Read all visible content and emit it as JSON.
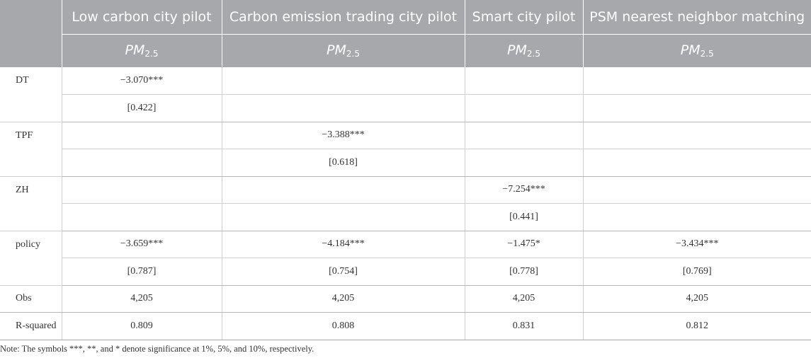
{
  "table": {
    "columns": [
      {
        "header": "Low carbon city pilot",
        "dep_var": "PM",
        "dep_sub": "2.5"
      },
      {
        "header": "Carbon emission trading city pilot",
        "dep_var": "PM",
        "dep_sub": "2.5"
      },
      {
        "header": "Smart city pilot",
        "dep_var": "PM",
        "dep_sub": "2.5"
      },
      {
        "header": "PSM nearest neighbor matching",
        "dep_var": "PM",
        "dep_sub": "2.5"
      }
    ],
    "rows": [
      {
        "var": "DT",
        "coef": [
          "−3.070***",
          "",
          "",
          ""
        ],
        "se": [
          "[0.422]",
          "",
          "",
          ""
        ]
      },
      {
        "var": "TPF",
        "coef": [
          "",
          "−3.388***",
          "",
          ""
        ],
        "se": [
          "",
          "[0.618]",
          "",
          ""
        ]
      },
      {
        "var": "ZH",
        "coef": [
          "",
          "",
          "−7.254***",
          ""
        ],
        "se": [
          "",
          "",
          "[0.441]",
          ""
        ]
      },
      {
        "var": "policy",
        "coef": [
          "−3.659***",
          "−4.184***",
          "−1.475*",
          "−3.434***"
        ],
        "se": [
          "[0.787]",
          "[0.754]",
          "[0.778]",
          "[0.769]"
        ]
      },
      {
        "var": "Obs",
        "vals": [
          "4,205",
          "4,205",
          "4,205",
          "4,205"
        ]
      },
      {
        "var": "R-squared",
        "vals": [
          "0.809",
          "0.808",
          "0.831",
          "0.812"
        ]
      }
    ]
  },
  "note": "Note: The symbols ***, **, and * denote significance at 1%, 5%, and 10%, respectively."
}
